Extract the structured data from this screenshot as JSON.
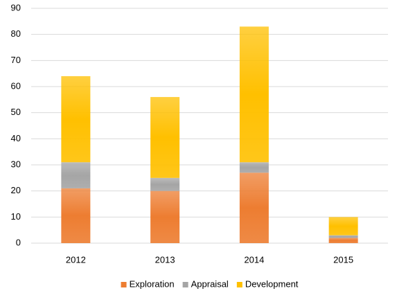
{
  "chart_data": {
    "type": "stacked_bar",
    "categories": [
      "2012",
      "2013",
      "2014",
      "2015"
    ],
    "series": [
      {
        "name": "Exploration",
        "color": "#ed7d31",
        "values": [
          21,
          20,
          27,
          2
        ]
      },
      {
        "name": "Appraisal",
        "color": "#a5a5a5",
        "values": [
          10,
          5,
          4,
          1
        ]
      },
      {
        "name": "Development",
        "color": "#ffc000",
        "values": [
          33,
          31,
          52,
          7
        ]
      }
    ],
    "ylim": [
      0,
      90
    ],
    "yticks": [
      0,
      10,
      20,
      30,
      40,
      50,
      60,
      70,
      80,
      90
    ],
    "grid": true,
    "legend": "bottom"
  }
}
